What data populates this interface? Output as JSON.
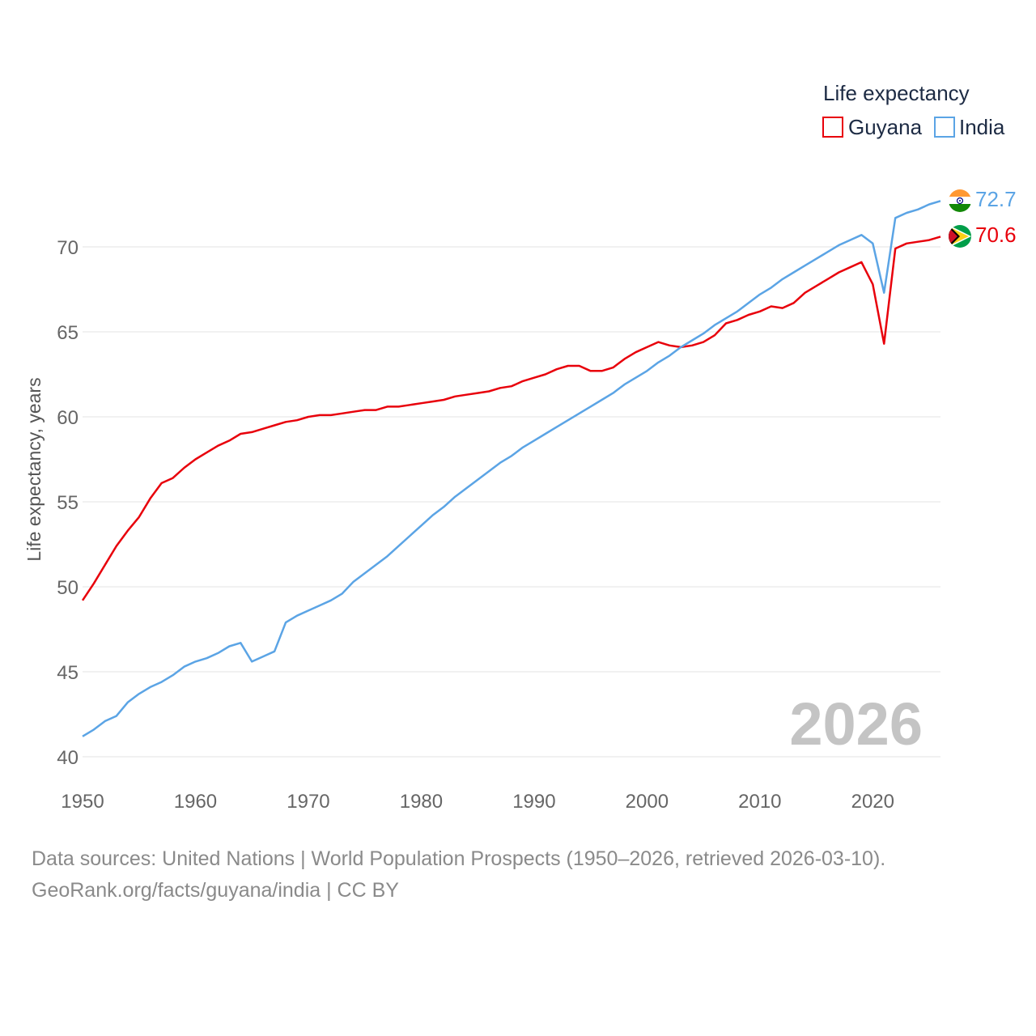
{
  "chart_data": {
    "type": "line",
    "legend_title": "Life expectancy",
    "ylabel": "Life expectancy, years",
    "xlabel": "",
    "current_year": "2026",
    "xlim": [
      1950,
      2026
    ],
    "ylim": [
      40,
      73
    ],
    "x_ticks": [
      1950,
      1960,
      1970,
      1980,
      1990,
      2000,
      2010,
      2020
    ],
    "y_ticks": [
      40,
      45,
      50,
      55,
      60,
      65,
      70
    ],
    "x": [
      1950,
      1951,
      1952,
      1953,
      1954,
      1955,
      1956,
      1957,
      1958,
      1959,
      1960,
      1961,
      1962,
      1963,
      1964,
      1965,
      1966,
      1967,
      1968,
      1969,
      1970,
      1971,
      1972,
      1973,
      1974,
      1975,
      1976,
      1977,
      1978,
      1979,
      1980,
      1981,
      1982,
      1983,
      1984,
      1985,
      1986,
      1987,
      1988,
      1989,
      1990,
      1991,
      1992,
      1993,
      1994,
      1995,
      1996,
      1997,
      1998,
      1999,
      2000,
      2001,
      2002,
      2003,
      2004,
      2005,
      2006,
      2007,
      2008,
      2009,
      2010,
      2011,
      2012,
      2013,
      2014,
      2015,
      2016,
      2017,
      2018,
      2019,
      2020,
      2021,
      2022,
      2023,
      2024,
      2025,
      2026
    ],
    "series": [
      {
        "name": "Guyana",
        "color": "#e8000b",
        "end_label": "70.6",
        "flag": "guyana-flag-icon",
        "values": [
          49.2,
          50.2,
          51.3,
          52.4,
          53.3,
          54.1,
          55.2,
          56.1,
          56.4,
          57.0,
          57.5,
          57.9,
          58.3,
          58.6,
          59.0,
          59.1,
          59.3,
          59.5,
          59.7,
          59.8,
          60.0,
          60.1,
          60.1,
          60.2,
          60.3,
          60.4,
          60.4,
          60.6,
          60.6,
          60.7,
          60.8,
          60.9,
          61.0,
          61.2,
          61.3,
          61.4,
          61.5,
          61.7,
          61.8,
          62.1,
          62.3,
          62.5,
          62.8,
          63.0,
          63.0,
          62.7,
          62.7,
          62.9,
          63.4,
          63.8,
          64.1,
          64.4,
          64.2,
          64.1,
          64.2,
          64.4,
          64.8,
          65.5,
          65.7,
          66.0,
          66.2,
          66.5,
          66.4,
          66.7,
          67.3,
          67.7,
          68.1,
          68.5,
          68.8,
          69.1,
          67.8,
          64.3,
          69.9,
          70.2,
          70.3,
          70.4,
          70.6
        ]
      },
      {
        "name": "India",
        "color": "#5ba4e5",
        "end_label": "72.7",
        "flag": "india-flag-icon",
        "values": [
          41.2,
          41.6,
          42.1,
          42.4,
          43.2,
          43.7,
          44.1,
          44.4,
          44.8,
          45.3,
          45.6,
          45.8,
          46.1,
          46.5,
          46.7,
          45.6,
          45.9,
          46.2,
          47.9,
          48.3,
          48.6,
          48.9,
          49.2,
          49.6,
          50.3,
          50.8,
          51.3,
          51.8,
          52.4,
          53.0,
          53.6,
          54.2,
          54.7,
          55.3,
          55.8,
          56.3,
          56.8,
          57.3,
          57.7,
          58.2,
          58.6,
          59.0,
          59.4,
          59.8,
          60.2,
          60.6,
          61.0,
          61.4,
          61.9,
          62.3,
          62.7,
          63.2,
          63.6,
          64.1,
          64.5,
          64.9,
          65.4,
          65.8,
          66.2,
          66.7,
          67.2,
          67.6,
          68.1,
          68.5,
          68.9,
          69.3,
          69.7,
          70.1,
          70.4,
          70.7,
          70.2,
          67.3,
          71.7,
          72.0,
          72.2,
          72.5,
          72.7
        ]
      }
    ]
  },
  "footer": {
    "line1": "Data sources: United Nations | World Population Prospects (1950–2026, retrieved 2026-03-10).",
    "line2": "GeoRank.org/facts/guyana/india | CC BY"
  }
}
